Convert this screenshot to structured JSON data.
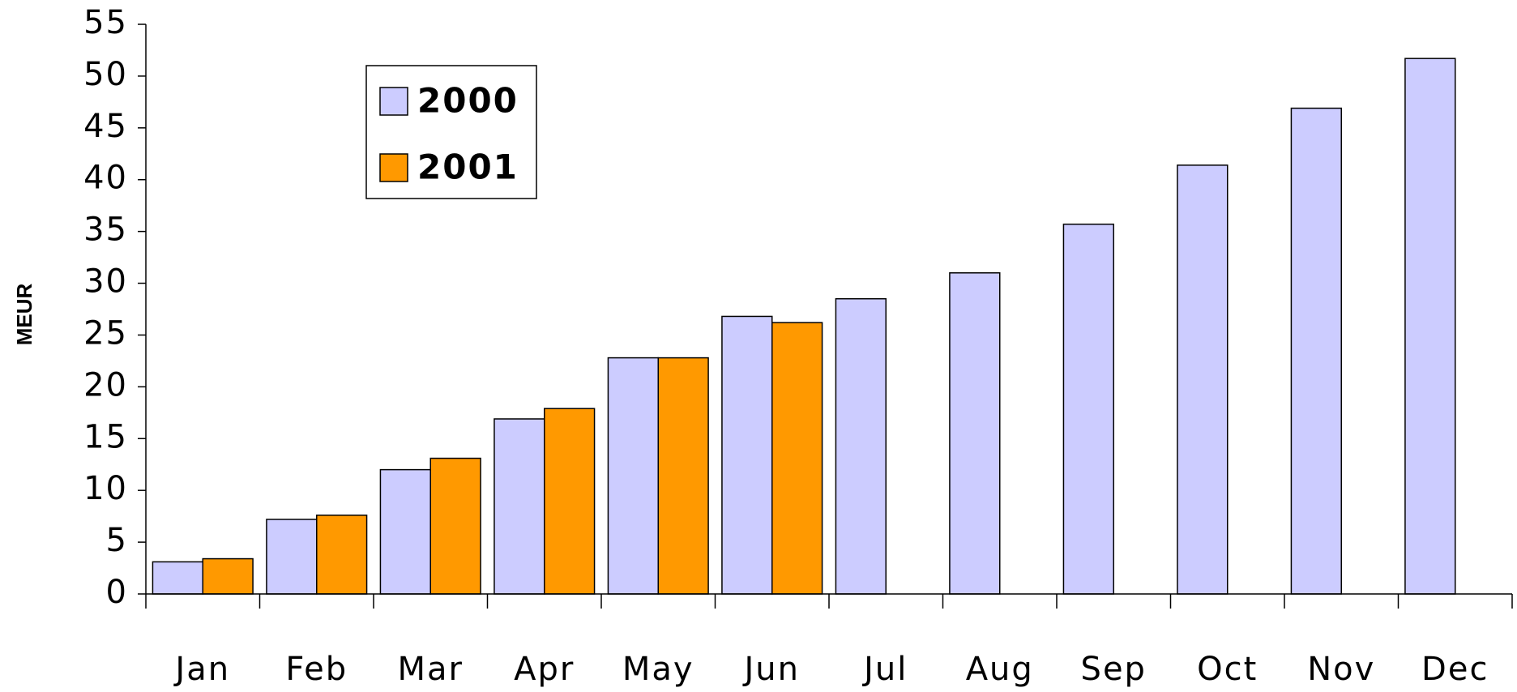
{
  "chart_data": {
    "type": "bar",
    "y_label": "MEUR",
    "categories": [
      "Jan",
      "Feb",
      "Mar",
      "Apr",
      "May",
      "Jun",
      "Jul",
      "Aug",
      "Sep",
      "Oct",
      "Nov",
      "Dec"
    ],
    "series": [
      {
        "name": "2000",
        "color": "#ccccff",
        "values": [
          3.1,
          7.2,
          12.0,
          16.9,
          22.8,
          26.8,
          28.5,
          31.0,
          35.7,
          41.4,
          46.9,
          51.7
        ]
      },
      {
        "name": "2001",
        "color": "#ff9900",
        "values": [
          3.4,
          7.6,
          13.1,
          17.9,
          22.8,
          26.2,
          null,
          null,
          null,
          null,
          null,
          null
        ]
      }
    ],
    "ylim": [
      0,
      55
    ],
    "yticks": [
      0,
      5,
      10,
      15,
      20,
      25,
      30,
      35,
      40,
      45,
      50,
      55
    ],
    "legend": "upper left"
  }
}
